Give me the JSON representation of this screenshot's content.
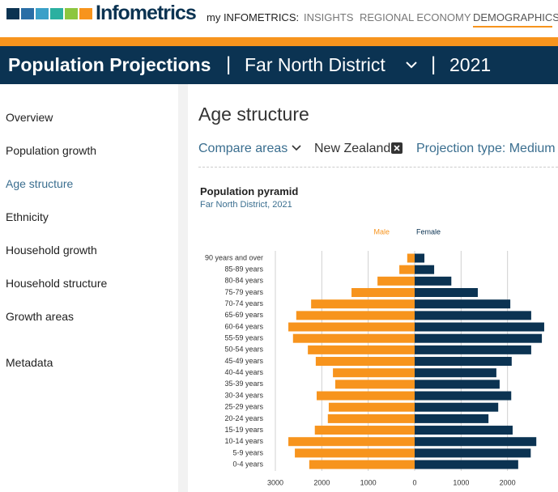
{
  "header": {
    "logo": "Infometrics",
    "nav": [
      "my INFOMETRICS:",
      "INSIGHTS",
      "REGIONAL ECONOMY",
      "DEMOGRAPHICS"
    ]
  },
  "banner": {
    "title": "Population Projections",
    "separator": "|",
    "area": "Far North District",
    "year": "2021"
  },
  "sidebar": {
    "items": [
      "Overview",
      "Population growth",
      "Age structure",
      "Ethnicity",
      "Household growth",
      "Household structure",
      "Growth areas",
      "Metadata"
    ]
  },
  "main": {
    "heading": "Age structure",
    "compare": "Compare areas",
    "compare_area": "New Zealand",
    "projection": "Projection type: Medium"
  },
  "chart_data": {
    "type": "pyramid",
    "title": "Population pyramid",
    "subtitle": "Far North District, 2021",
    "categories": [
      "90 years and over",
      "85-89 years",
      "80-84 years",
      "75-79 years",
      "70-74 years",
      "65-69 years",
      "60-64 years",
      "55-59 years",
      "50-54 years",
      "45-49 years",
      "40-44 years",
      "35-39 years",
      "30-34 years",
      "25-29 years",
      "20-24 years",
      "15-19 years",
      "10-14 years",
      "5-9 years",
      "0-4 years"
    ],
    "series": [
      {
        "name": "Male",
        "color": "#f7941d",
        "values": [
          -160,
          -330,
          -800,
          -1360,
          -2230,
          -2550,
          -2720,
          -2620,
          -2300,
          -2130,
          -1760,
          -1710,
          -2110,
          -1850,
          -1870,
          -2150,
          -2720,
          -2580,
          -2270
        ]
      },
      {
        "name": "Female",
        "color": "#0b3352",
        "values": [
          210,
          420,
          790,
          1360,
          2060,
          2510,
          2790,
          2740,
          2510,
          2090,
          1760,
          1830,
          2080,
          1800,
          1590,
          2110,
          2620,
          2500,
          2230
        ]
      }
    ],
    "xlim": [
      -3000,
      3000
    ],
    "xticks": [
      {
        "value": -3000,
        "label": "3000"
      },
      {
        "value": -2000,
        "label": "2000"
      },
      {
        "value": -1000,
        "label": "1000"
      },
      0,
      1000,
      2000
    ],
    "grid": true
  }
}
